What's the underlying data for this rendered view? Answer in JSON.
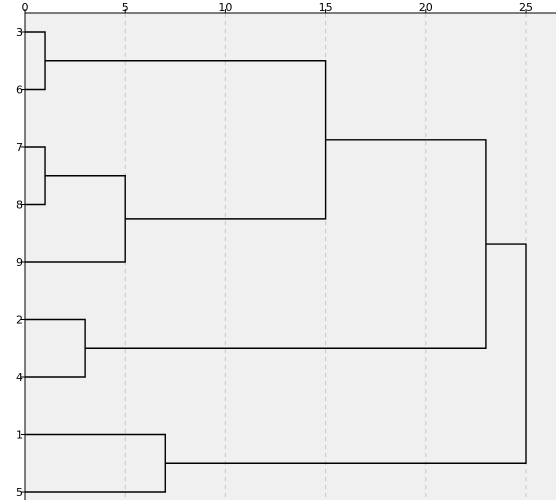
{
  "chart_data": {
    "type": "dendrogram",
    "title": "",
    "xlabel": "",
    "ylabel": "",
    "xlim": [
      0,
      25
    ],
    "x_ticks": [
      0,
      5,
      10,
      15,
      20,
      25
    ],
    "grid": "vertical-dashed",
    "plot_background": "#f0f0f0",
    "leaf_order": [
      "3",
      "6",
      "7",
      "8",
      "9",
      "2",
      "4",
      "1",
      "5"
    ],
    "merges": [
      {
        "id": "A",
        "left": "3",
        "right": "6",
        "distance": 1
      },
      {
        "id": "B",
        "left": "7",
        "right": "8",
        "distance": 1
      },
      {
        "id": "C",
        "left": "B",
        "right": "9",
        "distance": 5
      },
      {
        "id": "D",
        "left": "A",
        "right": "C",
        "distance": 15
      },
      {
        "id": "E",
        "left": "2",
        "right": "4",
        "distance": 3
      },
      {
        "id": "F",
        "left": "D",
        "right": "E",
        "distance": 23
      },
      {
        "id": "G",
        "left": "1",
        "right": "5",
        "distance": 7
      },
      {
        "id": "H",
        "left": "F",
        "right": "G",
        "distance": 25
      }
    ]
  }
}
